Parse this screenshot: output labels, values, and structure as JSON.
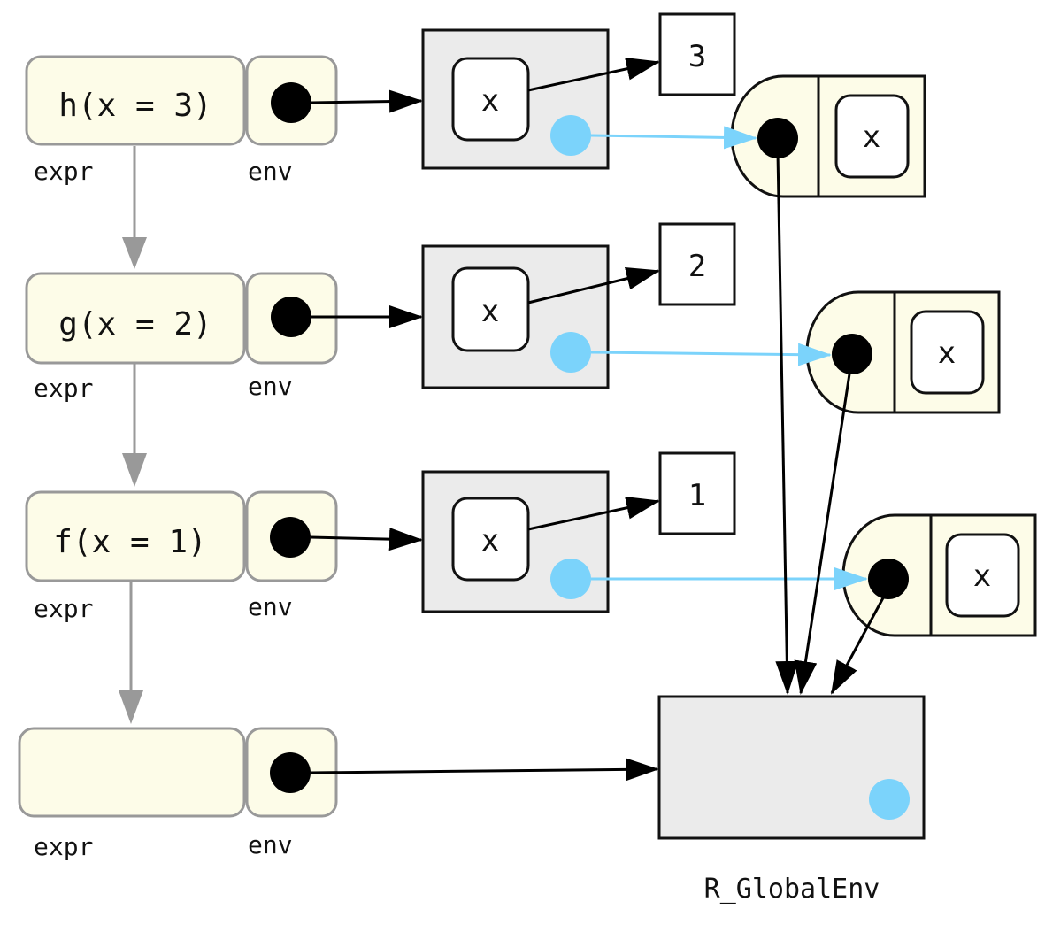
{
  "frames": [
    {
      "expr": "h(x = 3)",
      "expr_label": "expr",
      "env_label": "env"
    },
    {
      "expr": "g(x = 2)",
      "expr_label": "expr",
      "env_label": "env"
    },
    {
      "expr": "f(x = 1)",
      "expr_label": "expr",
      "env_label": "env"
    },
    {
      "expr": "",
      "expr_label": "expr",
      "env_label": "env"
    }
  ],
  "environments": [
    {
      "binding": "x",
      "value": "3"
    },
    {
      "binding": "x",
      "value": "2"
    },
    {
      "binding": "x",
      "value": "1"
    }
  ],
  "functions": [
    {
      "formal": "x"
    },
    {
      "formal": "x"
    },
    {
      "formal": "x"
    }
  ],
  "global_env": {
    "label": "R_GlobalEnv"
  },
  "colors": {
    "frame_fill": "#fdfce8",
    "frame_stroke": "#999999",
    "env_fill": "#ebebeb",
    "enclosure_dot": "#7bd3fb",
    "pointer_dot": "#000000"
  }
}
